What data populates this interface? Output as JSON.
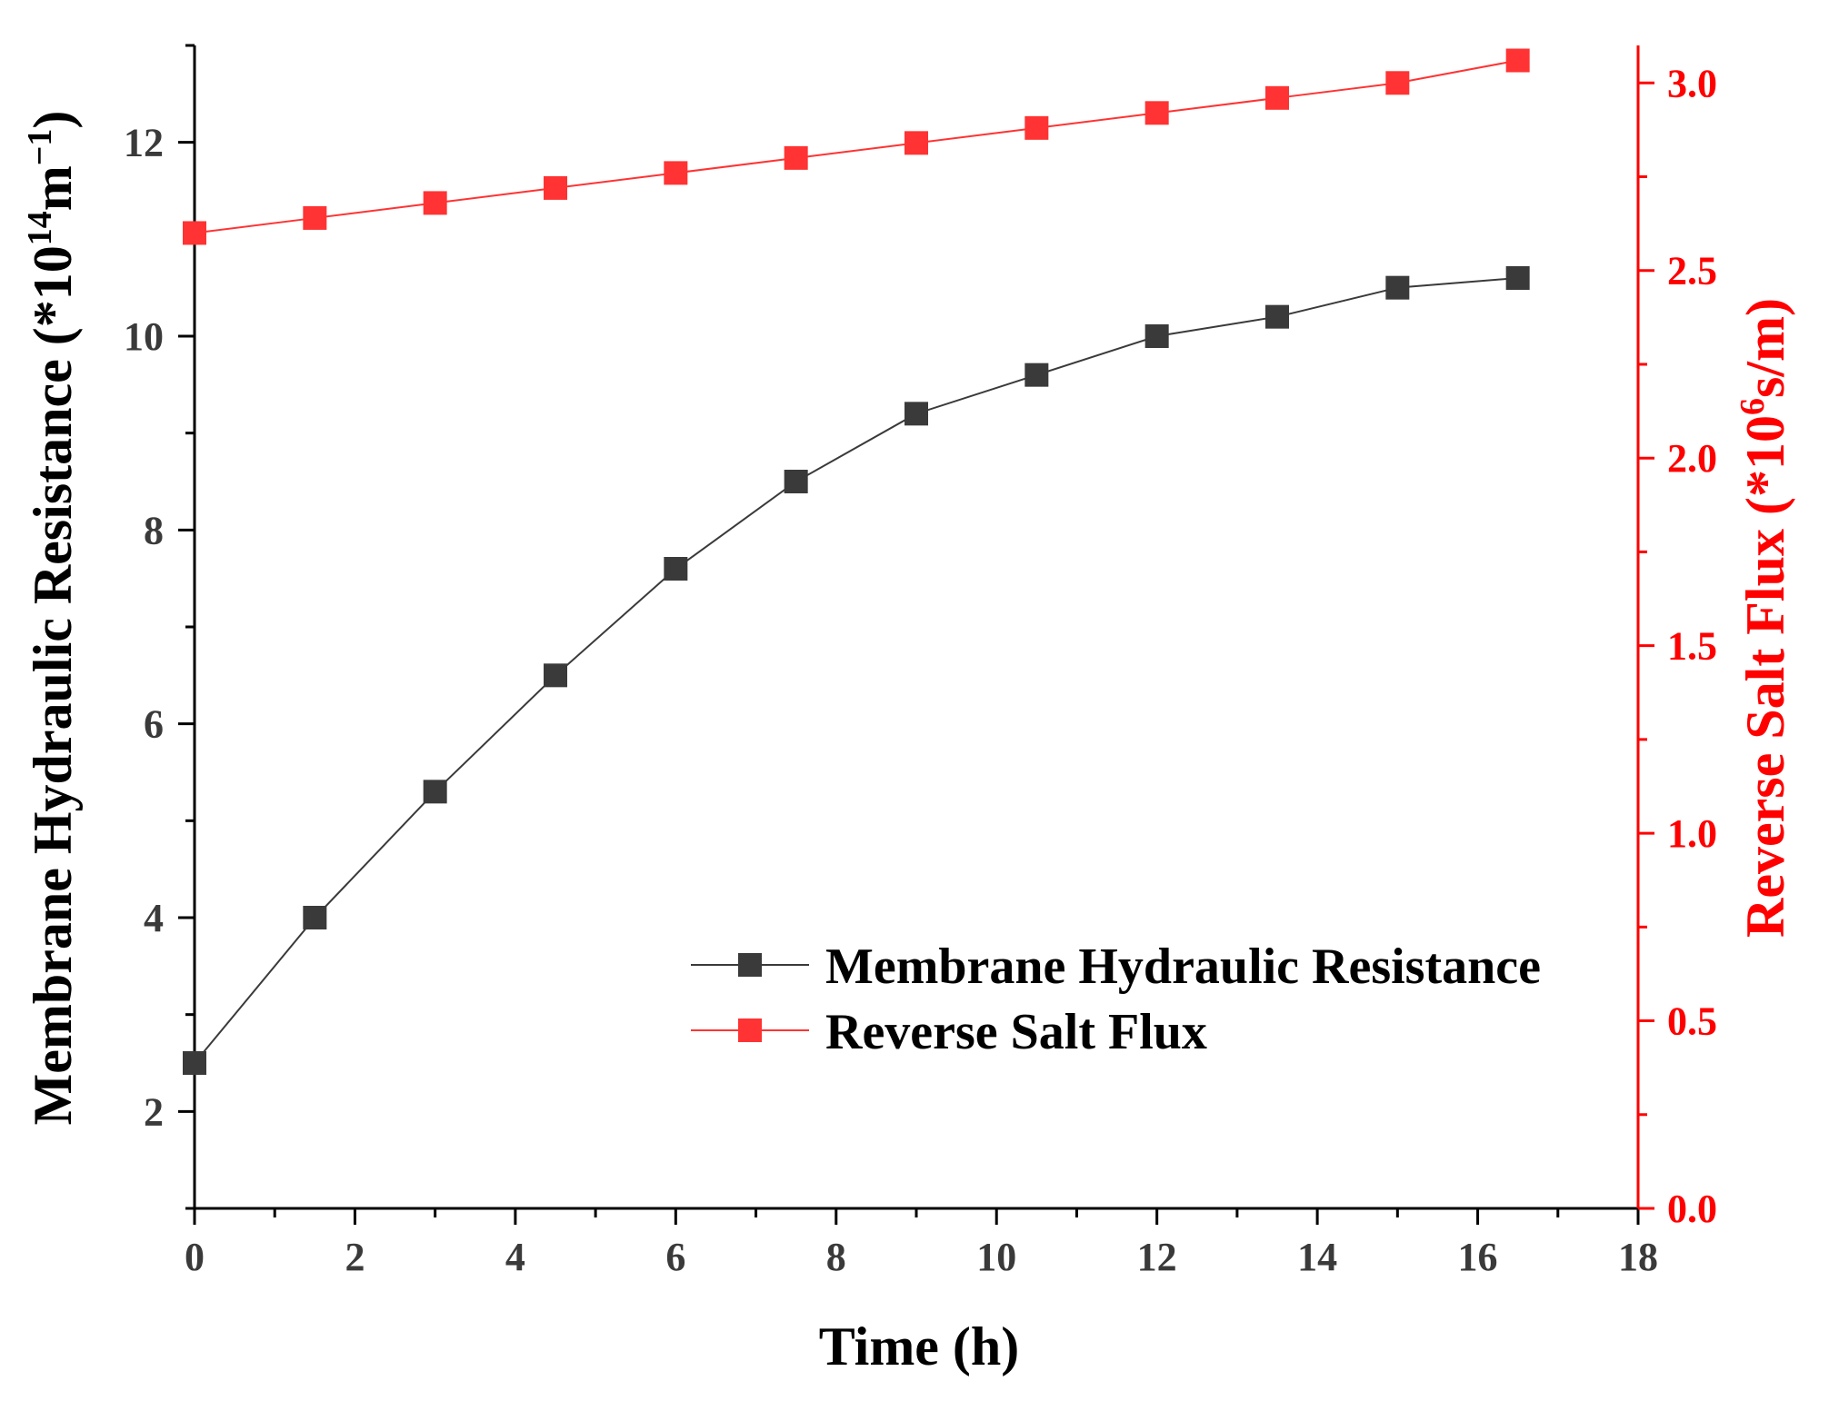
{
  "chart_data": {
    "type": "line",
    "xlabel": "Time (h)",
    "xlim": [
      0,
      18
    ],
    "x_ticks": [
      0,
      2,
      4,
      6,
      8,
      10,
      12,
      14,
      16,
      18
    ],
    "x_tick_labels": [
      "0",
      "2",
      "4",
      "6",
      "8",
      "10",
      "12",
      "14",
      "16",
      "18"
    ],
    "y_left": {
      "label_main": "Membrane Hydraulic Resistance (*10",
      "label_sup1": "14",
      "label_mid": "m",
      "label_sup2": "−1",
      "label_end": ")",
      "lim": [
        1,
        13
      ],
      "ticks": [
        2,
        4,
        6,
        8,
        10,
        12
      ],
      "tick_labels": [
        "2",
        "4",
        "6",
        "8",
        "10",
        "12"
      ],
      "color": "#000000"
    },
    "y_right": {
      "label_main": "Reverse Salt Flux (*10",
      "label_sup": "6",
      "label_end": "s/m)",
      "lim": [
        0,
        3.1
      ],
      "ticks": [
        0,
        0.5,
        1.0,
        1.5,
        2.0,
        2.5,
        3.0
      ],
      "tick_labels": [
        "0.0",
        "0.5",
        "1.0",
        "1.5",
        "2.0",
        "2.5",
        "3.0"
      ],
      "color": "#ff0000"
    },
    "series": [
      {
        "name": "Membrane Hydraulic Resistance",
        "axis": "left",
        "color": "#3a3a3a",
        "x": [
          0,
          1.5,
          3,
          4.5,
          6,
          7.5,
          9,
          10.5,
          12,
          13.5,
          15,
          16.5
        ],
        "y": [
          2.5,
          4.0,
          5.3,
          6.5,
          7.6,
          8.5,
          9.2,
          9.6,
          10.0,
          10.2,
          10.5,
          10.6
        ]
      },
      {
        "name": "Reverse Salt Flux",
        "axis": "right",
        "color": "#ff3333",
        "x": [
          0,
          1.5,
          3,
          4.5,
          6,
          7.5,
          9,
          10.5,
          12,
          13.5,
          15,
          16.5
        ],
        "y": [
          2.6,
          2.64,
          2.68,
          2.72,
          2.76,
          2.8,
          2.84,
          2.88,
          2.92,
          2.96,
          3.0,
          3.06
        ]
      }
    ],
    "legend_position": "lower-right"
  }
}
